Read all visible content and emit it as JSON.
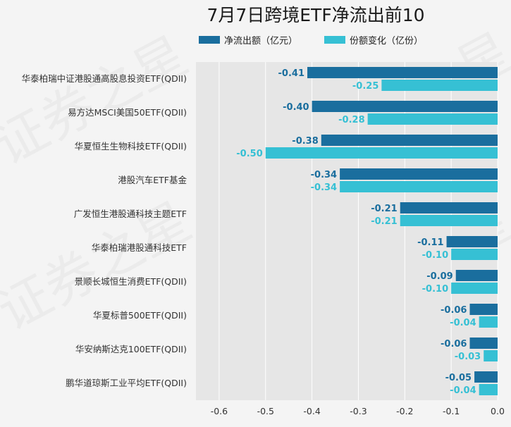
{
  "chart_data": {
    "type": "bar",
    "orientation": "horizontal",
    "title": "7月7日跨境ETF净流出前10",
    "categories": [
      "华泰柏瑞中证港股通高股息投资ETF(QDII)",
      "易方达MSCI美国50ETF(QDII)",
      "华夏恒生生物科技ETF(QDII)",
      "港股汽车ETF基金",
      "广发恒生港股通科技主题ETF",
      "华泰柏瑞港股通科技ETF",
      "景顺长城恒生消费ETF(QDII)",
      "华夏标普500ETF(QDII)",
      "华安纳斯达克100ETF(QDII)",
      "鹏华道琼斯工业平均ETF(QDII)"
    ],
    "series": [
      {
        "name": "净流出额（亿元）",
        "color": "#1a6e9e",
        "values": [
          -0.41,
          -0.4,
          -0.38,
          -0.34,
          -0.21,
          -0.11,
          -0.09,
          -0.06,
          -0.06,
          -0.05
        ],
        "labels": [
          "-0.41",
          "-0.40",
          "-0.38",
          "-0.34",
          "-0.21",
          "-0.11",
          "-0.09",
          "-0.06",
          "-0.06",
          "-0.05"
        ]
      },
      {
        "name": "份额变化（亿份）",
        "color": "#36c0d4",
        "values": [
          -0.25,
          -0.28,
          -0.5,
          -0.34,
          -0.21,
          -0.1,
          -0.1,
          -0.04,
          -0.03,
          -0.04
        ],
        "labels": [
          "-0.25",
          "-0.28",
          "-0.50",
          "-0.34",
          "-0.21",
          "-0.10",
          "-0.10",
          "-0.04",
          "-0.03",
          "-0.04"
        ]
      }
    ],
    "xlim": [
      -0.65,
      0.0
    ],
    "xticks": [
      -0.6,
      -0.5,
      -0.4,
      -0.3,
      -0.2,
      -0.1,
      0.0
    ],
    "xtick_labels": [
      "-0.6",
      "-0.5",
      "-0.4",
      "-0.3",
      "-0.2",
      "-0.1",
      "0.0"
    ],
    "grid": true,
    "legend_position": "top"
  }
}
